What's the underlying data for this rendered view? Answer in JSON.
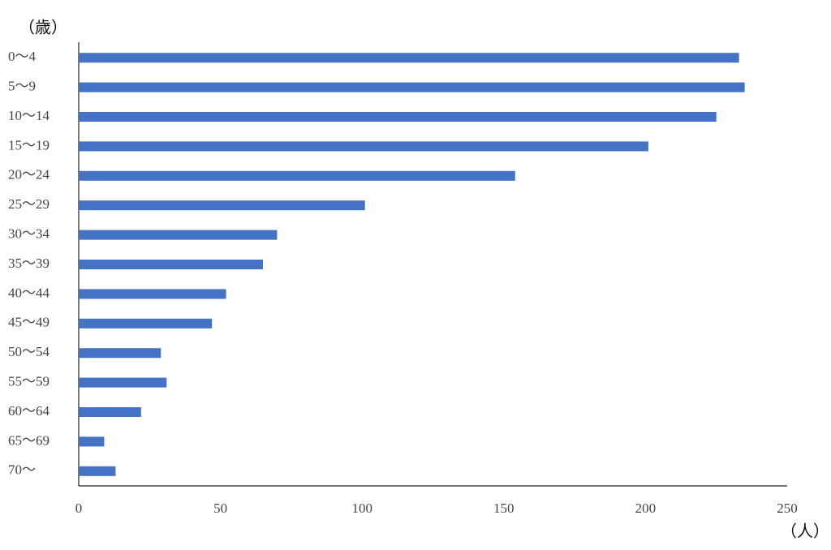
{
  "chart_data": {
    "type": "bar",
    "horizontal": true,
    "y_label": "（歳）",
    "x_label": "（人）",
    "categories": [
      "0～4",
      "5～9",
      "10～14",
      "15～19",
      "20～24",
      "25～29",
      "30～34",
      "35～39",
      "40～44",
      "45～49",
      "50～54",
      "55～59",
      "60～64",
      "65～69",
      "70～"
    ],
    "values": [
      233,
      235,
      225,
      201,
      154,
      101,
      70,
      65,
      52,
      47,
      29,
      31,
      22,
      9,
      13
    ],
    "color": "#4472c4",
    "xlim": [
      0,
      250
    ],
    "xticks": [
      0,
      50,
      100,
      150,
      200,
      250
    ],
    "grid": false
  }
}
